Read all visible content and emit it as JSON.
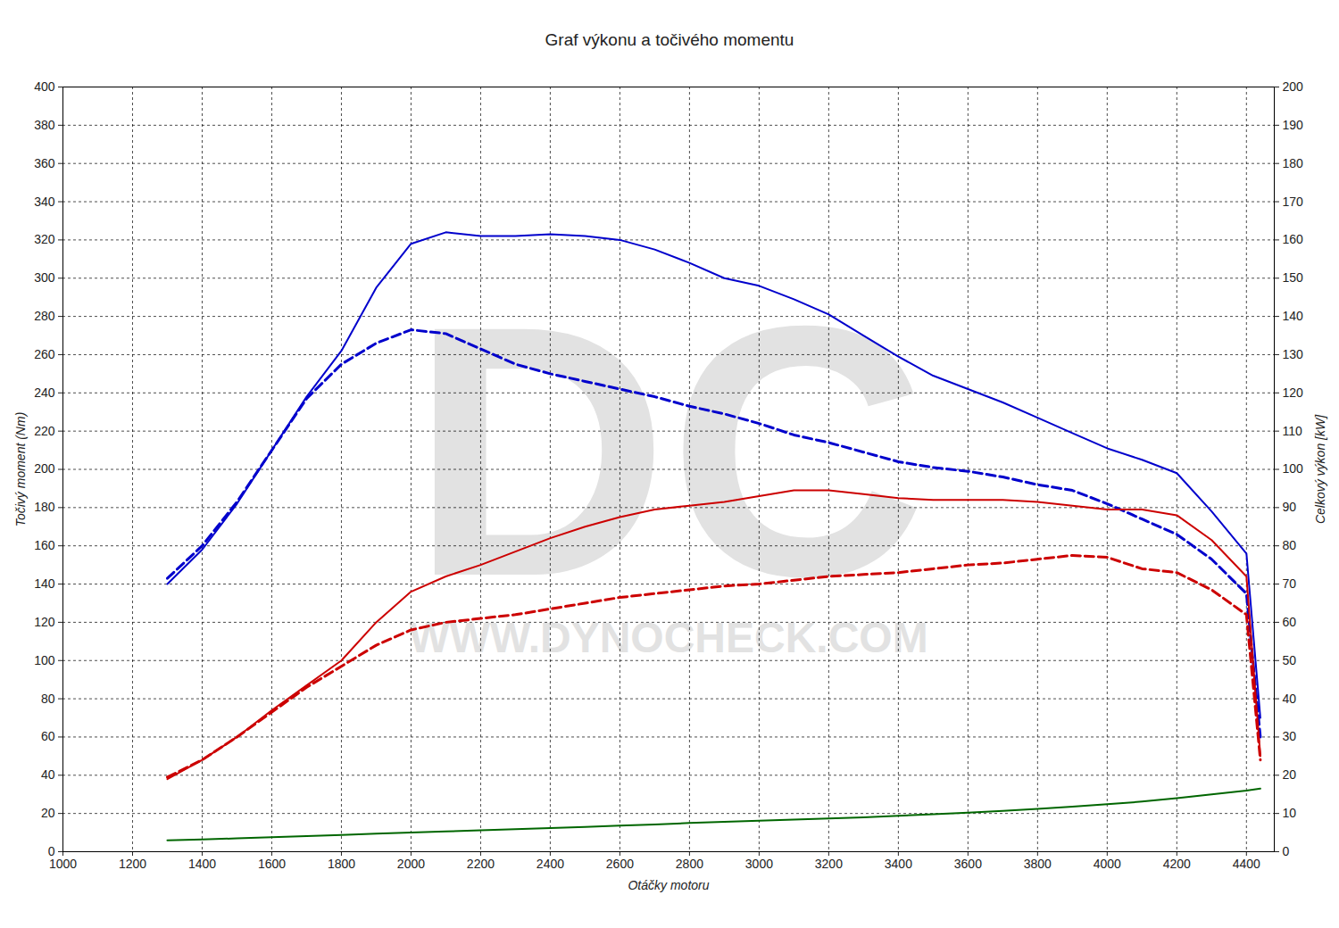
{
  "chart_data": {
    "type": "line",
    "title": "Graf výkonu a točivého momentu",
    "x_label": "Otáčky motoru",
    "y_label": "Točivý moment (Nm)",
    "y2_label": "Celkový výkon [kW]",
    "annotations": [
      "DC",
      "WWW.DYNOCHECK.COM"
    ],
    "grid": true,
    "xlim": [
      1000,
      4480
    ],
    "xticks": [
      1000,
      1200,
      1400,
      1600,
      1800,
      2000,
      2200,
      2400,
      2600,
      2800,
      3000,
      3200,
      3400,
      3600,
      3800,
      4000,
      4200,
      4400
    ],
    "ylim": [
      0,
      400
    ],
    "yticks": [
      0,
      20,
      40,
      60,
      80,
      100,
      120,
      140,
      160,
      180,
      200,
      220,
      240,
      260,
      280,
      300,
      320,
      340,
      360,
      380,
      400
    ],
    "y2lim": [
      0,
      200
    ],
    "y2ticks": [
      0,
      10,
      20,
      30,
      40,
      50,
      60,
      70,
      80,
      90,
      100,
      110,
      120,
      130,
      140,
      150,
      160,
      170,
      180,
      190,
      200
    ],
    "x": [
      1300,
      1400,
      1500,
      1600,
      1700,
      1800,
      1900,
      2000,
      2100,
      2200,
      2300,
      2400,
      2500,
      2600,
      2700,
      2800,
      2900,
      3000,
      3100,
      3200,
      3300,
      3400,
      3500,
      3600,
      3700,
      3800,
      3900,
      4000,
      4100,
      4200,
      4300,
      4400,
      4440
    ],
    "series": [
      {
        "color": "#0000cc",
        "line_style": "solid",
        "axis": "y",
        "values": [
          140,
          158,
          182,
          210,
          238,
          262,
          295,
          318,
          324,
          322,
          322,
          323,
          322,
          320,
          315,
          308,
          300,
          296,
          289,
          281,
          270,
          259,
          249,
          242,
          235,
          227,
          219,
          211,
          205,
          198,
          178,
          156,
          70
        ]
      },
      {
        "color": "#0000cc",
        "line_style": "dashed",
        "axis": "y",
        "values": [
          143,
          160,
          183,
          210,
          237,
          255,
          266,
          273,
          271,
          263,
          255,
          250,
          246,
          242,
          238,
          233,
          229,
          224,
          218,
          214,
          209,
          204,
          201,
          199,
          196,
          192,
          189,
          182,
          174,
          166,
          153,
          135,
          60
        ]
      },
      {
        "color": "#cc0000",
        "line_style": "solid",
        "axis": "y2",
        "values": [
          19,
          24,
          30,
          37,
          43.5,
          50,
          60,
          68,
          72,
          75,
          78.5,
          82,
          85,
          87.5,
          89.5,
          90.5,
          91.5,
          93,
          94.5,
          94.5,
          93.5,
          92.5,
          92,
          92,
          92,
          91.5,
          90.5,
          89.5,
          89.5,
          88,
          81.5,
          72,
          25
        ]
      },
      {
        "color": "#cc0000",
        "line_style": "dashed",
        "axis": "y2",
        "values": [
          19.5,
          24,
          30,
          36.5,
          43,
          48.5,
          54,
          58,
          60,
          61,
          62,
          63.5,
          65,
          66.5,
          67.5,
          68.5,
          69.5,
          70,
          71,
          72,
          72.5,
          73,
          74,
          75,
          75.5,
          76.5,
          77.5,
          77,
          74,
          73,
          68.5,
          62,
          24
        ]
      },
      {
        "color": "#006600",
        "line_style": "solid",
        "axis": "y2",
        "values": [
          3.0,
          3.2,
          3.5,
          3.8,
          4.1,
          4.4,
          4.7,
          5.0,
          5.3,
          5.6,
          5.9,
          6.2,
          6.5,
          6.8,
          7.1,
          7.5,
          7.8,
          8.1,
          8.4,
          8.7,
          9.0,
          9.4,
          9.8,
          10.2,
          10.7,
          11.2,
          11.8,
          12.4,
          13.1,
          14.0,
          15.0,
          16.0,
          16.5
        ]
      }
    ]
  }
}
